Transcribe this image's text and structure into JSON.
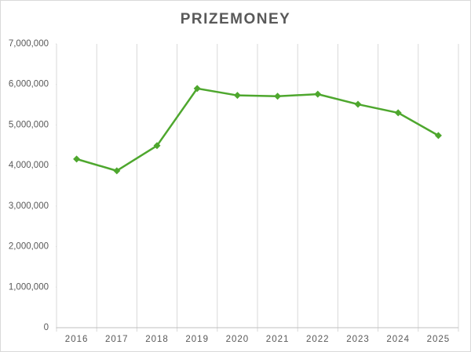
{
  "chart_data": {
    "type": "line",
    "title": "PRIZEMONEY",
    "categories": [
      "2016",
      "2017",
      "2018",
      "2019",
      "2020",
      "2021",
      "2022",
      "2023",
      "2024",
      "2025"
    ],
    "series": [
      {
        "name": "Prizemoney",
        "color": "#4ea72e",
        "values": [
          4160000,
          3870000,
          4490000,
          5900000,
          5730000,
          5710000,
          5760000,
          5510000,
          5300000,
          4740000
        ]
      }
    ],
    "ylim": [
      0,
      7000000
    ],
    "yticks": [
      {
        "value": 0,
        "label": "0"
      },
      {
        "value": 1000000,
        "label": "1,000,000"
      },
      {
        "value": 2000000,
        "label": "2,000,000"
      },
      {
        "value": 3000000,
        "label": "3,000,000"
      },
      {
        "value": 4000000,
        "label": "4,000,000"
      },
      {
        "value": 5000000,
        "label": "5,000,000"
      },
      {
        "value": 6000000,
        "label": "6,000,000"
      },
      {
        "value": 7000000,
        "label": "7,000,000"
      }
    ],
    "grid": "x"
  }
}
